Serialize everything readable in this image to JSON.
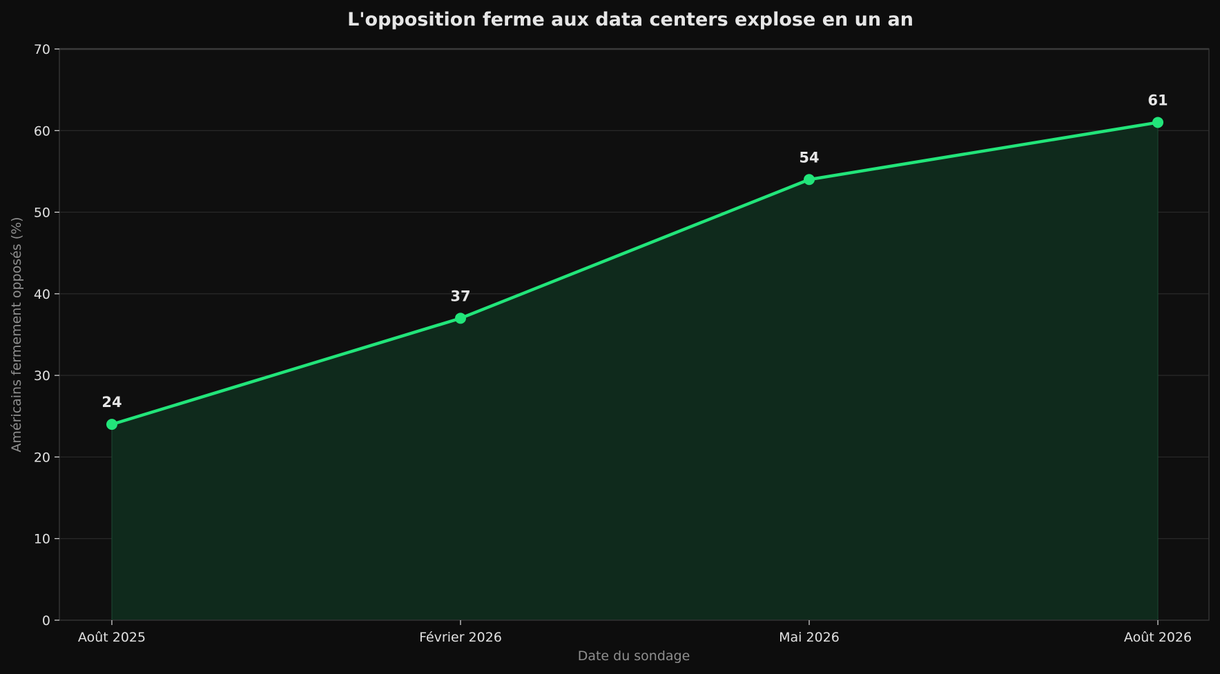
{
  "chart_data": {
    "type": "area",
    "title": "L'opposition ferme aux data centers explose en un an",
    "xlabel": "Date du sondage",
    "ylabel": "Américains fermement opposés (%)",
    "categories": [
      "Août 2025",
      "Février 2026",
      "Mai 2026",
      "Août 2026"
    ],
    "series": [
      {
        "values": [
          24,
          37,
          54,
          61
        ]
      }
    ],
    "data_labels": [
      "24",
      "37",
      "54",
      "61"
    ],
    "ylim": [
      0,
      70
    ],
    "yticks": [
      0,
      10,
      20,
      30,
      40,
      50,
      60,
      70
    ],
    "ytick_labels": [
      "0",
      "10",
      "20",
      "30",
      "40",
      "50",
      "60",
      "70"
    ],
    "grid": "horizontal",
    "legend": "none",
    "colors": {
      "background": "#0d0d0d",
      "plot_background": "#0f0f0f",
      "line": "#22e57a",
      "marker": "#22e57a",
      "area_fill": "#0f2a1c",
      "grid": "#2a2a2a",
      "spine": "#333333",
      "title": "#e6e6e6",
      "tick_text": "#e0e0e0",
      "axis_label": "#8f8f8f",
      "data_label": "#e6e6e6"
    }
  }
}
